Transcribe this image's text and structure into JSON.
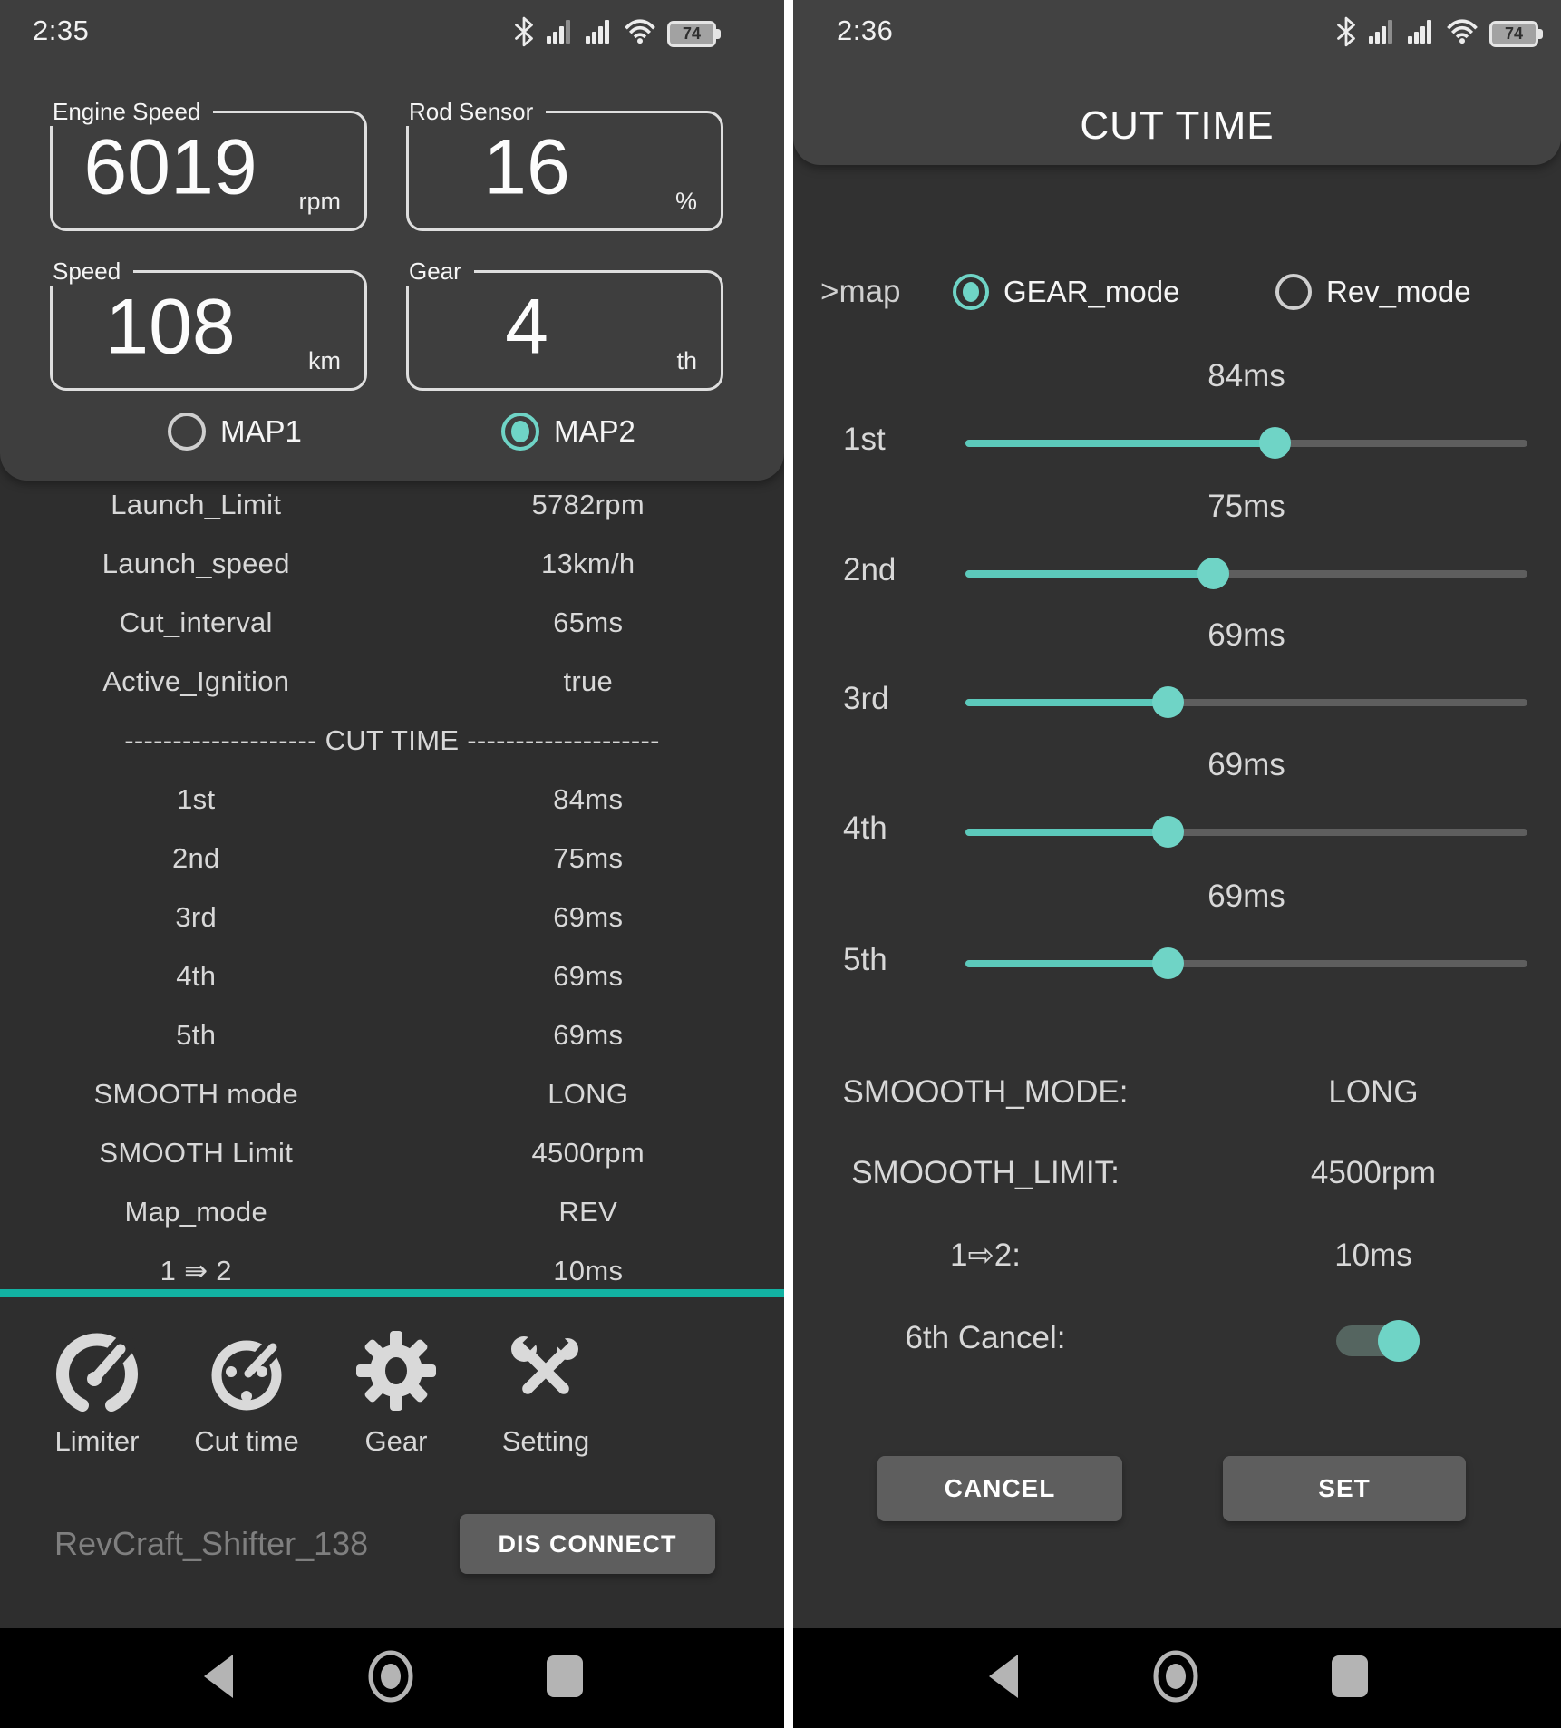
{
  "left_screen": {
    "status_bar": {
      "time": "2:35",
      "battery_percent": "74"
    },
    "gauges": [
      {
        "label": "Engine Speed",
        "value": "6019",
        "unit": "rpm"
      },
      {
        "label": "Rod Sensor",
        "value": "16",
        "unit": "%"
      },
      {
        "label": "Speed",
        "value": "108",
        "unit": "km"
      },
      {
        "label": "Gear",
        "value": "4",
        "unit": "th"
      }
    ],
    "map_radios": [
      {
        "label": "MAP1",
        "selected": false
      },
      {
        "label": "MAP2",
        "selected": true
      }
    ],
    "params": [
      {
        "label": "Launch_Limit",
        "value": "5782rpm"
      },
      {
        "label": "Launch_speed",
        "value": "13km/h"
      },
      {
        "label": "Cut_interval",
        "value": "65ms"
      },
      {
        "label": "Active_Ignition",
        "value": "true"
      }
    ],
    "section_divider": "-------------------- CUT TIME --------------------",
    "cut_times": [
      {
        "label": "1st",
        "value": "84ms"
      },
      {
        "label": "2nd",
        "value": "75ms"
      },
      {
        "label": "3rd",
        "value": "69ms"
      },
      {
        "label": "4th",
        "value": "69ms"
      },
      {
        "label": "5th",
        "value": "69ms"
      },
      {
        "label": "SMOOTH mode",
        "value": "LONG"
      },
      {
        "label": "SMOOTH Limit",
        "value": "4500rpm"
      },
      {
        "label": "Map_mode",
        "value": "REV"
      },
      {
        "label": "1 ⇛ 2",
        "value": "10ms"
      }
    ],
    "tabs": [
      {
        "label": "Limiter",
        "icon": "speedometer-icon"
      },
      {
        "label": "Cut time",
        "icon": "timer-icon"
      },
      {
        "label": "Gear",
        "icon": "gear-icon"
      },
      {
        "label": "Setting",
        "icon": "tools-icon"
      }
    ],
    "device_name": "RevCraft_Shifter_138",
    "disconnect_button": "DIS CONNECT"
  },
  "right_screen": {
    "status_bar": {
      "time": "2:36",
      "battery_percent": "74"
    },
    "title": "CUT TIME",
    "map_row": {
      "label": ">map",
      "options": [
        {
          "label": "GEAR_mode",
          "selected": true
        },
        {
          "label": "Rev_mode",
          "selected": false
        }
      ]
    },
    "sliders": [
      {
        "gear": "1st",
        "value": "84ms",
        "percent": 55
      },
      {
        "gear": "2nd",
        "value": "75ms",
        "percent": 44
      },
      {
        "gear": "3rd",
        "value": "69ms",
        "percent": 36
      },
      {
        "gear": "4th",
        "value": "69ms",
        "percent": 36
      },
      {
        "gear": "5th",
        "value": "69ms",
        "percent": 36
      }
    ],
    "settings": [
      {
        "label": "SMOOOTH_MODE:",
        "value": "LONG"
      },
      {
        "label": "SMOOOTH_LIMIT:",
        "value": "4500rpm"
      },
      {
        "label": "1⇨2:",
        "value": "10ms"
      }
    ],
    "toggle": {
      "label": "6th Cancel:",
      "on": true
    },
    "buttons": {
      "cancel": "CANCEL",
      "set": "SET"
    }
  },
  "colors": {
    "accent_teal": "#6fd4c6",
    "teal_line": "#12b2a2",
    "panel_dark": "#2e2e2e",
    "card_gray": "#3e3e3e",
    "button_gray": "#5e5e5e",
    "divider_white": "#ffffff"
  }
}
